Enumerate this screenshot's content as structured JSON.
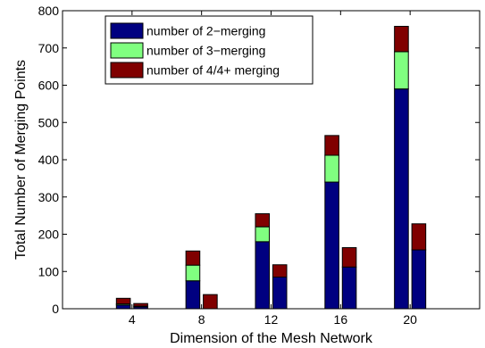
{
  "chart_data": {
    "type": "bar",
    "stacked": true,
    "grouped_by": "dimension",
    "xlabel": "Dimension of the Mesh Network",
    "ylabel": "Total Number of Merging Points",
    "xlim": [
      0,
      24
    ],
    "ylim": [
      0,
      800
    ],
    "xticks": [
      4,
      8,
      12,
      16,
      20
    ],
    "yticks": [
      0,
      100,
      200,
      300,
      400,
      500,
      600,
      700,
      800
    ],
    "grid": false,
    "legend_position": "top-left",
    "series": [
      {
        "name": "number of 2−merging",
        "color": "#000080"
      },
      {
        "name": "number of 3−merging",
        "color": "#80ff80"
      },
      {
        "name": "number of 4/4+ merging",
        "color": "#800000"
      }
    ],
    "bars": [
      {
        "x": 3.5,
        "values": [
          10,
          3,
          15
        ]
      },
      {
        "x": 4.5,
        "values": [
          5,
          2,
          7
        ]
      },
      {
        "x": 7.5,
        "values": [
          75,
          42,
          38
        ]
      },
      {
        "x": 8.5,
        "values": [
          0,
          0,
          38
        ]
      },
      {
        "x": 11.5,
        "values": [
          180,
          40,
          35
        ]
      },
      {
        "x": 12.5,
        "values": [
          85,
          0,
          33
        ]
      },
      {
        "x": 15.5,
        "values": [
          340,
          72,
          53
        ]
      },
      {
        "x": 16.5,
        "values": [
          112,
          0,
          52
        ]
      },
      {
        "x": 19.5,
        "values": [
          590,
          100,
          68
        ]
      },
      {
        "x": 20.5,
        "values": [
          158,
          0,
          70
        ]
      }
    ]
  }
}
